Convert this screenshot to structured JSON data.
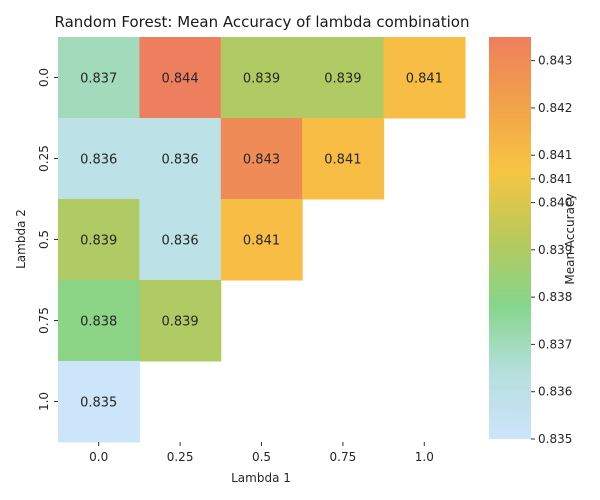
{
  "chart_data": {
    "type": "heatmap",
    "title": "Random Forest: Mean Accuracy of lambda combination",
    "xlabel": "Lambda 1",
    "ylabel": "Lambda 2",
    "x_categories": [
      "0.0",
      "0.25",
      "0.5",
      "0.75",
      "1.0"
    ],
    "y_categories": [
      "0.0",
      "0.25",
      "0.5",
      "0.75",
      "1.0"
    ],
    "values": [
      [
        0.837,
        0.844,
        0.839,
        0.839,
        0.841
      ],
      [
        0.836,
        0.836,
        0.843,
        0.841,
        null
      ],
      [
        0.839,
        0.836,
        0.841,
        null,
        null
      ],
      [
        0.838,
        0.839,
        null,
        null,
        null
      ],
      [
        0.835,
        null,
        null,
        null,
        null
      ]
    ],
    "colorbar": {
      "label": "Mean Accuracy",
      "range": [
        0.835,
        0.8435
      ],
      "ticks": [
        "0.835",
        "0.836",
        "0.837",
        "0.838",
        "0.839",
        "0.840",
        "0.841",
        "0.841",
        "0.842",
        "0.843"
      ],
      "tick_values": [
        0.835,
        0.836,
        0.837,
        0.838,
        0.839,
        0.84,
        0.8405,
        0.841,
        0.842,
        0.843
      ],
      "colors": [
        "#cce5fb",
        "#b5dfdd",
        "#86d58c",
        "#b9c95a",
        "#f8c543",
        "#f2a14a",
        "#ee7f5e"
      ]
    }
  }
}
